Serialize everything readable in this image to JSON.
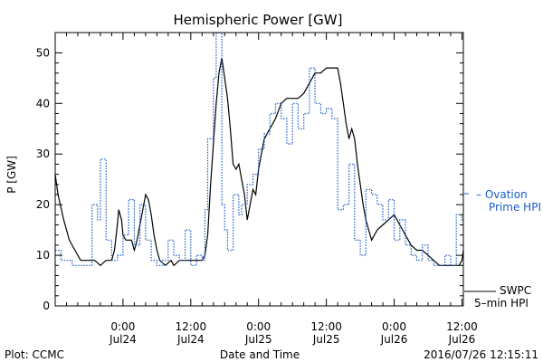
{
  "chart_data": {
    "type": "line",
    "title": "Hemispheric Power [GW]",
    "xlabel": "Date and Time",
    "ylabel": "P [GW]",
    "ylim": [
      0,
      54
    ],
    "yticks": [
      0,
      10,
      20,
      30,
      40,
      50
    ],
    "xlim": [
      "2016-07-23 12:00",
      "2016-07-26 12:15"
    ],
    "xticks": [
      {
        "x": "2016-07-24 00:00",
        "top": "0:00",
        "bottom": "Jul24"
      },
      {
        "x": "2016-07-24 12:00",
        "top": "12:00",
        "bottom": "Jul24"
      },
      {
        "x": "2016-07-25 00:00",
        "top": "0:00",
        "bottom": "Jul25"
      },
      {
        "x": "2016-07-25 12:00",
        "top": "12:00",
        "bottom": "Jul25"
      },
      {
        "x": "2016-07-26 00:00",
        "top": "0:00",
        "bottom": "Jul26"
      },
      {
        "x": "2016-07-26 12:00",
        "top": "12:00",
        "bottom": "Jul26"
      }
    ],
    "series": [
      {
        "name": "SWPC 5-min HPI",
        "color": "#000000",
        "style": "solid",
        "points": [
          [
            "2016-07-23 12:00",
            26
          ],
          [
            "2016-07-23 12:30",
            22
          ],
          [
            "2016-07-23 13:30",
            17
          ],
          [
            "2016-07-23 14:30",
            13
          ],
          [
            "2016-07-23 15:30",
            11
          ],
          [
            "2016-07-23 16:30",
            9
          ],
          [
            "2016-07-23 19:00",
            9
          ],
          [
            "2016-07-23 20:00",
            8
          ],
          [
            "2016-07-23 21:00",
            9
          ],
          [
            "2016-07-23 22:00",
            9
          ],
          [
            "2016-07-23 22:30",
            11
          ],
          [
            "2016-07-23 23:00",
            16
          ],
          [
            "2016-07-23 23:15",
            19
          ],
          [
            "2016-07-23 23:45",
            17
          ],
          [
            "2016-07-24 00:00",
            14
          ],
          [
            "2016-07-24 00:30",
            13
          ],
          [
            "2016-07-24 01:30",
            13
          ],
          [
            "2016-07-24 02:00",
            11
          ],
          [
            "2016-07-24 02:30",
            13
          ],
          [
            "2016-07-24 03:00",
            16
          ],
          [
            "2016-07-24 03:30",
            19
          ],
          [
            "2016-07-24 04:00",
            22
          ],
          [
            "2016-07-24 04:30",
            21
          ],
          [
            "2016-07-24 05:00",
            18
          ],
          [
            "2016-07-24 05:30",
            14
          ],
          [
            "2016-07-24 06:00",
            11
          ],
          [
            "2016-07-24 06:30",
            9
          ],
          [
            "2016-07-24 07:30",
            8
          ],
          [
            "2016-07-24 08:30",
            9
          ],
          [
            "2016-07-24 09:00",
            8
          ],
          [
            "2016-07-24 10:00",
            9
          ],
          [
            "2016-07-24 11:00",
            9
          ],
          [
            "2016-07-24 12:00",
            9
          ],
          [
            "2016-07-24 13:00",
            9
          ],
          [
            "2016-07-24 14:00",
            9
          ],
          [
            "2016-07-24 14:30",
            10
          ],
          [
            "2016-07-24 15:00",
            14
          ],
          [
            "2016-07-24 15:30",
            24
          ],
          [
            "2016-07-24 16:00",
            32
          ],
          [
            "2016-07-24 16:30",
            40
          ],
          [
            "2016-07-24 17:00",
            46
          ],
          [
            "2016-07-24 17:30",
            49
          ],
          [
            "2016-07-24 18:00",
            45
          ],
          [
            "2016-07-24 18:30",
            41
          ],
          [
            "2016-07-24 19:00",
            35
          ],
          [
            "2016-07-24 19:30",
            28
          ],
          [
            "2016-07-24 20:00",
            27
          ],
          [
            "2016-07-24 20:30",
            28
          ],
          [
            "2016-07-24 21:00",
            25
          ],
          [
            "2016-07-24 21:30",
            22
          ],
          [
            "2016-07-24 22:00",
            17
          ],
          [
            "2016-07-24 22:30",
            20
          ],
          [
            "2016-07-24 23:00",
            23
          ],
          [
            "2016-07-24 23:30",
            22
          ],
          [
            "2016-07-25 00:00",
            27
          ],
          [
            "2016-07-25 00:30",
            30
          ],
          [
            "2016-07-25 01:00",
            33
          ],
          [
            "2016-07-25 02:00",
            35
          ],
          [
            "2016-07-25 03:00",
            37
          ],
          [
            "2016-07-25 04:00",
            40
          ],
          [
            "2016-07-25 05:00",
            41
          ],
          [
            "2016-07-25 06:00",
            41
          ],
          [
            "2016-07-25 07:00",
            41
          ],
          [
            "2016-07-25 08:00",
            42
          ],
          [
            "2016-07-25 09:00",
            44
          ],
          [
            "2016-07-25 10:00",
            46
          ],
          [
            "2016-07-25 11:00",
            46
          ],
          [
            "2016-07-25 12:00",
            47
          ],
          [
            "2016-07-25 13:00",
            47
          ],
          [
            "2016-07-25 14:00",
            47
          ],
          [
            "2016-07-25 14:30",
            44
          ],
          [
            "2016-07-25 15:00",
            40
          ],
          [
            "2016-07-25 15:30",
            36
          ],
          [
            "2016-07-25 16:00",
            33
          ],
          [
            "2016-07-25 16:30",
            35
          ],
          [
            "2016-07-25 17:00",
            33
          ],
          [
            "2016-07-25 17:30",
            28
          ],
          [
            "2016-07-25 18:00",
            24
          ],
          [
            "2016-07-25 18:30",
            20
          ],
          [
            "2016-07-25 19:00",
            17
          ],
          [
            "2016-07-25 19:30",
            15
          ],
          [
            "2016-07-25 20:00",
            13
          ],
          [
            "2016-07-25 21:00",
            15
          ],
          [
            "2016-07-25 22:00",
            16
          ],
          [
            "2016-07-25 23:00",
            17
          ],
          [
            "2016-07-26 00:00",
            18
          ],
          [
            "2016-07-26 01:00",
            16
          ],
          [
            "2016-07-26 02:00",
            14
          ],
          [
            "2016-07-26 03:00",
            12
          ],
          [
            "2016-07-26 04:00",
            11
          ],
          [
            "2016-07-26 05:00",
            11
          ],
          [
            "2016-07-26 06:00",
            10
          ],
          [
            "2016-07-26 07:00",
            9
          ],
          [
            "2016-07-26 08:00",
            8
          ],
          [
            "2016-07-26 10:00",
            8
          ],
          [
            "2016-07-26 11:30",
            8
          ],
          [
            "2016-07-26 12:00",
            9
          ],
          [
            "2016-07-26 12:15",
            11
          ]
        ]
      },
      {
        "name": "Ovation Prime HPI",
        "color": "#1a5cc8",
        "style": "dotted-step",
        "points": [
          [
            "2016-07-23 12:00",
            11
          ],
          [
            "2016-07-23 13:00",
            9
          ],
          [
            "2016-07-23 15:00",
            8
          ],
          [
            "2016-07-23 18:00",
            8
          ],
          [
            "2016-07-23 18:30",
            20
          ],
          [
            "2016-07-23 19:30",
            17
          ],
          [
            "2016-07-23 20:00",
            29
          ],
          [
            "2016-07-23 21:00",
            13
          ],
          [
            "2016-07-23 22:00",
            9
          ],
          [
            "2016-07-23 23:00",
            10
          ],
          [
            "2016-07-24 00:00",
            14
          ],
          [
            "2016-07-24 01:00",
            21
          ],
          [
            "2016-07-24 02:00",
            12
          ],
          [
            "2016-07-24 03:00",
            20
          ],
          [
            "2016-07-24 04:00",
            13
          ],
          [
            "2016-07-24 05:00",
            9
          ],
          [
            "2016-07-24 06:00",
            8
          ],
          [
            "2016-07-24 07:00",
            9
          ],
          [
            "2016-07-24 08:00",
            13
          ],
          [
            "2016-07-24 09:00",
            10
          ],
          [
            "2016-07-24 10:00",
            9
          ],
          [
            "2016-07-24 11:00",
            15
          ],
          [
            "2016-07-24 12:00",
            8
          ],
          [
            "2016-07-24 13:00",
            10
          ],
          [
            "2016-07-24 14:00",
            9
          ],
          [
            "2016-07-24 14:30",
            19
          ],
          [
            "2016-07-24 15:00",
            33
          ],
          [
            "2016-07-24 16:00",
            45
          ],
          [
            "2016-07-24 16:30",
            54
          ],
          [
            "2016-07-24 17:30",
            20
          ],
          [
            "2016-07-24 18:00",
            15
          ],
          [
            "2016-07-24 18:30",
            11
          ],
          [
            "2016-07-24 19:30",
            22
          ],
          [
            "2016-07-24 20:30",
            18
          ],
          [
            "2016-07-24 21:00",
            20
          ],
          [
            "2016-07-24 22:00",
            24
          ],
          [
            "2016-07-24 23:00",
            26
          ],
          [
            "2016-07-25 00:00",
            31
          ],
          [
            "2016-07-25 01:00",
            34
          ],
          [
            "2016-07-25 02:00",
            38
          ],
          [
            "2016-07-25 03:00",
            40
          ],
          [
            "2016-07-25 04:00",
            37
          ],
          [
            "2016-07-25 05:00",
            32
          ],
          [
            "2016-07-25 06:00",
            40
          ],
          [
            "2016-07-25 07:00",
            35
          ],
          [
            "2016-07-25 08:00",
            38
          ],
          [
            "2016-07-25 09:00",
            47
          ],
          [
            "2016-07-25 10:00",
            40
          ],
          [
            "2016-07-25 11:00",
            38
          ],
          [
            "2016-07-25 12:00",
            39
          ],
          [
            "2016-07-25 13:00",
            37
          ],
          [
            "2016-07-25 14:00",
            19
          ],
          [
            "2016-07-25 15:00",
            20
          ],
          [
            "2016-07-25 16:00",
            28
          ],
          [
            "2016-07-25 17:00",
            13
          ],
          [
            "2016-07-25 18:00",
            10
          ],
          [
            "2016-07-25 19:00",
            23
          ],
          [
            "2016-07-25 20:00",
            22
          ],
          [
            "2016-07-25 21:00",
            20
          ],
          [
            "2016-07-25 22:00",
            17
          ],
          [
            "2016-07-25 23:00",
            21
          ],
          [
            "2016-07-26 00:00",
            13
          ],
          [
            "2016-07-26 01:00",
            17
          ],
          [
            "2016-07-26 02:00",
            12
          ],
          [
            "2016-07-26 03:00",
            10
          ],
          [
            "2016-07-26 04:00",
            9
          ],
          [
            "2016-07-26 05:00",
            12
          ],
          [
            "2016-07-26 06:00",
            9
          ],
          [
            "2016-07-26 07:00",
            8
          ],
          [
            "2016-07-26 08:00",
            8
          ],
          [
            "2016-07-26 09:00",
            10
          ],
          [
            "2016-07-26 10:00",
            8
          ],
          [
            "2016-07-26 11:00",
            18
          ],
          [
            "2016-07-26 12:00",
            17
          ],
          [
            "2016-07-26 12:15",
            17
          ]
        ]
      }
    ],
    "legend": [
      {
        "series": "Ovation Prime HPI",
        "line1": "– Ovation",
        "line2": "Prime HPI"
      },
      {
        "series": "SWPC 5-min HPI",
        "line1": "SWPC",
        "line2": "5–min HPI"
      }
    ]
  },
  "footer": {
    "left": "Plot: CCMC",
    "center": "Date and Time",
    "right": "2016/07/26 12:15:11"
  }
}
